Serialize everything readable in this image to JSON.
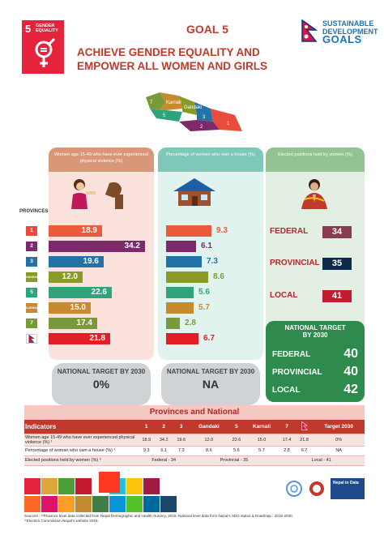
{
  "header": {
    "sdg5": {
      "number": "5",
      "label": "GENDER EQUALITY"
    },
    "goal": "GOAL 5",
    "subtitle": "ACHIEVE GENDER EQUALITY AND EMPOWER ALL WOMEN AND GIRLS",
    "sdg_logo": {
      "line1": "SUSTAINABLE",
      "line2": "DEVELOPMENT",
      "line3": "GOALS"
    }
  },
  "map": {
    "labels": [
      "Karnali",
      "Gandaki",
      "5",
      "3",
      "2",
      "1",
      "7"
    ]
  },
  "columns": {
    "violence": "Women age 15-49 who have ever experienced physical violence (%)",
    "house": "Percentage of women who own a house (%)",
    "elected": "Elected positions held by women (%)"
  },
  "provinces_label": "PROVINCES",
  "provinces": [
    {
      "label": "1",
      "color": "#e74c3c"
    },
    {
      "label": "2",
      "color": "#7d2a6b"
    },
    {
      "label": "3",
      "color": "#2372a8"
    },
    {
      "label": "GANDAKI",
      "color": "#8a9a27"
    },
    {
      "label": "5",
      "color": "#2fa37c"
    },
    {
      "label": "KARNALI",
      "color": "#c88a2f"
    },
    {
      "label": "7",
      "color": "#7a9a3a"
    },
    {
      "label": "",
      "color": "#ffffff"
    }
  ],
  "violence_values": [
    "18.9",
    "34.2",
    "19.6",
    "12.0",
    "22.6",
    "15.0",
    "17.4",
    "21.8"
  ],
  "violence_num": [
    18.9,
    34.2,
    19.6,
    12.0,
    22.6,
    15.0,
    17.4,
    21.8
  ],
  "house_values": [
    "9.3",
    "6.1",
    "7.3",
    "8.6",
    "5.6",
    "5.7",
    "2.8",
    "6.7"
  ],
  "house_num": [
    9.3,
    6.1,
    7.3,
    8.6,
    5.6,
    5.7,
    2.8,
    6.7
  ],
  "bar_colors": [
    "#ec5a3c",
    "#7d2a6b",
    "#2372a8",
    "#8a9a27",
    "#2fa37c",
    "#c88a2f",
    "#7a9a3a",
    "#e21f26"
  ],
  "elected": [
    {
      "label": "FEDERAL",
      "value": "34",
      "color": "#8c3b4b"
    },
    {
      "label": "PROVINCIAL",
      "value": "35",
      "color": "#0e2a47"
    },
    {
      "label": "LOCAL",
      "value": "41",
      "color": "#c21d2f"
    }
  ],
  "targets": {
    "card_title": "NATIONAL TARGET BY 2030",
    "violence": "0%",
    "house": "NA",
    "elected_title": "NATIONAL TARGET BY 2030",
    "elected_rows": [
      {
        "label": "FEDERAL",
        "value": "40"
      },
      {
        "label": "PROVINCIAL",
        "value": "40"
      },
      {
        "label": "LOCAL",
        "value": "42"
      }
    ]
  },
  "table": {
    "title": "Provinces and National",
    "headers": [
      "Indicators",
      "1",
      "2",
      "3",
      "Gandaki",
      "5",
      "Karnali",
      "7",
      "",
      "Target 2030"
    ],
    "rows": [
      [
        "Women age 15-49 who have ever experienced physical violence (%) ¹",
        "18.9",
        "34.2",
        "19.6",
        "12.0",
        "22.6",
        "15.0",
        "17.4",
        "21.8",
        "0%"
      ],
      [
        "Percentage of woman who own a house (%) ²",
        "9.3",
        "6.1",
        "7.3",
        "8.6",
        "5.6",
        "5.7",
        "2.8",
        "6.7",
        "NA"
      ]
    ],
    "elected_row": {
      "label": "Elected positions held by women (%) ³",
      "federal": "Federal - 34",
      "provincial": "Provincial - 35",
      "local": "Local - 41"
    }
  },
  "sources": {
    "line1": "Sources : ¹²Province level data collected from Nepal Demographic and Health Survery, 2016. National level data from Nepal's SDG status & Roadmap : 2016-2030.",
    "line2": "³ Election Commission Nepal's website 2018."
  },
  "footer": {
    "nepal_in_data": "Nepal in Data"
  }
}
